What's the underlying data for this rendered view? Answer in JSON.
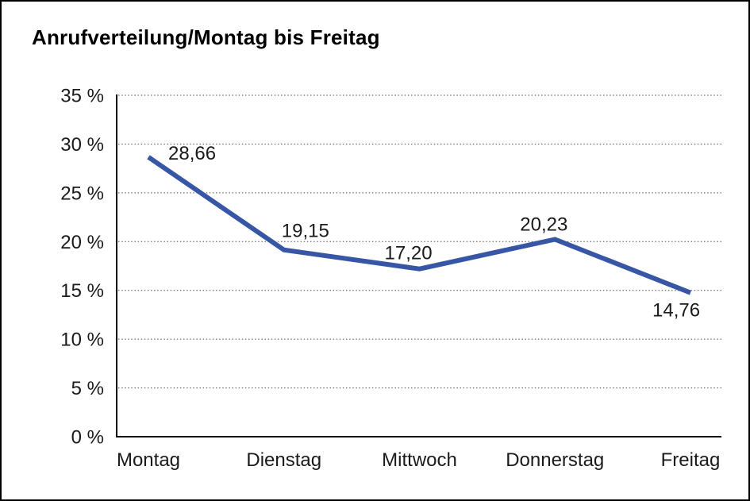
{
  "chart_data": {
    "type": "line",
    "title": "Anrufverteilung/Montag bis Freitag",
    "categories": [
      "Montag",
      "Dienstag",
      "Mittwoch",
      "Donnerstag",
      "Freitag"
    ],
    "series": [
      {
        "name": "Anrufverteilung",
        "values": [
          28.66,
          19.15,
          17.2,
          20.23,
          14.76
        ]
      }
    ],
    "value_labels": [
      "28,66",
      "19,15",
      "17,20",
      "20,23",
      "14,76"
    ],
    "xlabel": "",
    "ylabel": "",
    "ylim": [
      0,
      35
    ],
    "ytick_step": 5,
    "ytick_labels": [
      "0 %",
      "5 %",
      "10 %",
      "15 %",
      "20 %",
      "25 %",
      "30 %",
      "35 %"
    ],
    "grid": "horizontal-dotted",
    "legend_position": "none",
    "colors": {
      "line": "#3757A6",
      "text": "#1a1a1a",
      "axis": "#000000",
      "gridline": "#4d4d4d",
      "background": "#ffffff"
    }
  }
}
